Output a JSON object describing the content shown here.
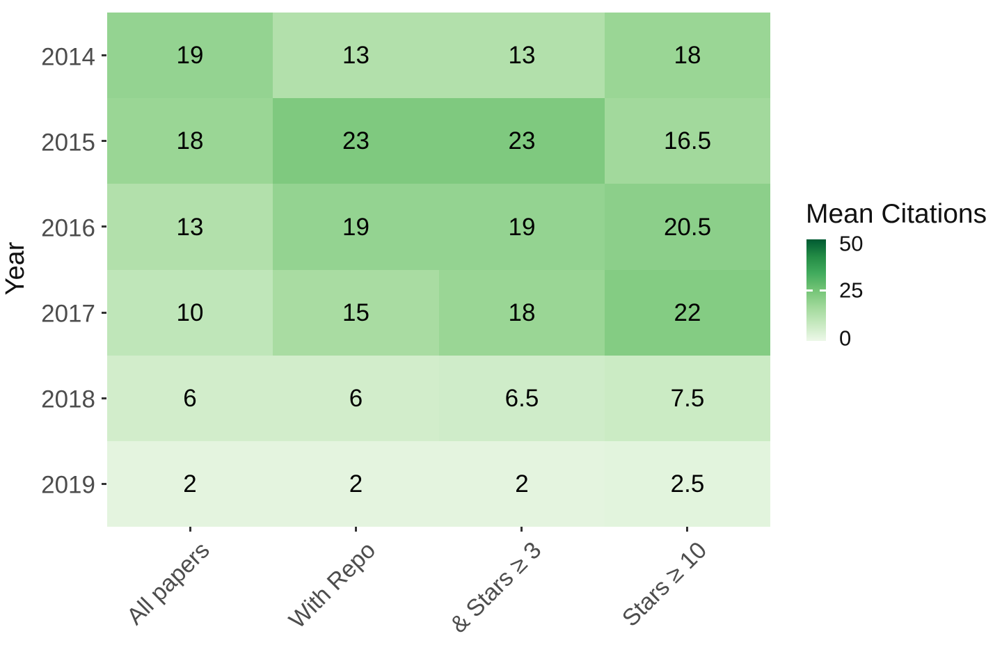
{
  "chart_data": {
    "type": "heatmap",
    "title": "",
    "xlabel": "",
    "ylabel": "Year",
    "x_categories": [
      "All papers",
      "With Repo",
      "& Stars ≥ 3",
      "Stars ≥ 10"
    ],
    "y_categories": [
      "2014",
      "2015",
      "2016",
      "2017",
      "2018",
      "2019"
    ],
    "values": [
      [
        19,
        13,
        13,
        18
      ],
      [
        18,
        23,
        23,
        16.5
      ],
      [
        13,
        19,
        19,
        20.5
      ],
      [
        10,
        15,
        18,
        22
      ],
      [
        6,
        6,
        6.5,
        7.5
      ],
      [
        2,
        2,
        2,
        2.5
      ]
    ],
    "legend": {
      "title": "Mean Citations",
      "ticks": [
        50,
        25,
        0
      ],
      "limits": [
        0,
        50
      ],
      "position": "right"
    },
    "colors": {
      "palette_greens": [
        "#edf8e9",
        "#c7e9c0",
        "#a1d99b",
        "#74c476",
        "#41ab5d",
        "#238b45",
        "#005a32"
      ],
      "axis_text": "#4d4d4d",
      "cell_text": "#000000",
      "tick_mark": "#333333",
      "background": "#ffffff"
    },
    "grid": false
  }
}
